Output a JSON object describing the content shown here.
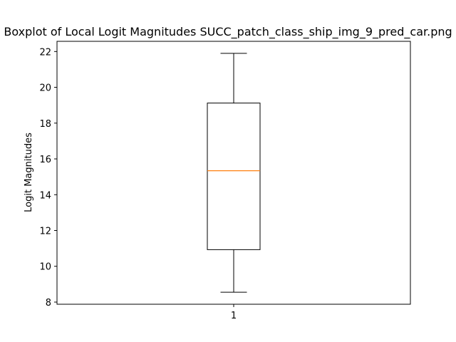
{
  "chart_data": {
    "type": "boxplot",
    "title": "Boxplot of Local Logit Magnitudes SUCC_patch_class_ship_img_9_pred_car.png",
    "xlabel": "",
    "ylabel": "Logit Magnitudes",
    "categories": [
      "1"
    ],
    "boxes": [
      {
        "whisker_low": 8.55,
        "q1": 10.93,
        "median": 15.34,
        "q3": 19.12,
        "whisker_high": 21.9
      }
    ],
    "ylim": [
      7.88,
      22.57
    ],
    "yticks": [
      8,
      10,
      12,
      14,
      16,
      18,
      20,
      22
    ],
    "grid": false,
    "colors": {
      "box": "#000000",
      "median": "#ff7f0e"
    }
  }
}
